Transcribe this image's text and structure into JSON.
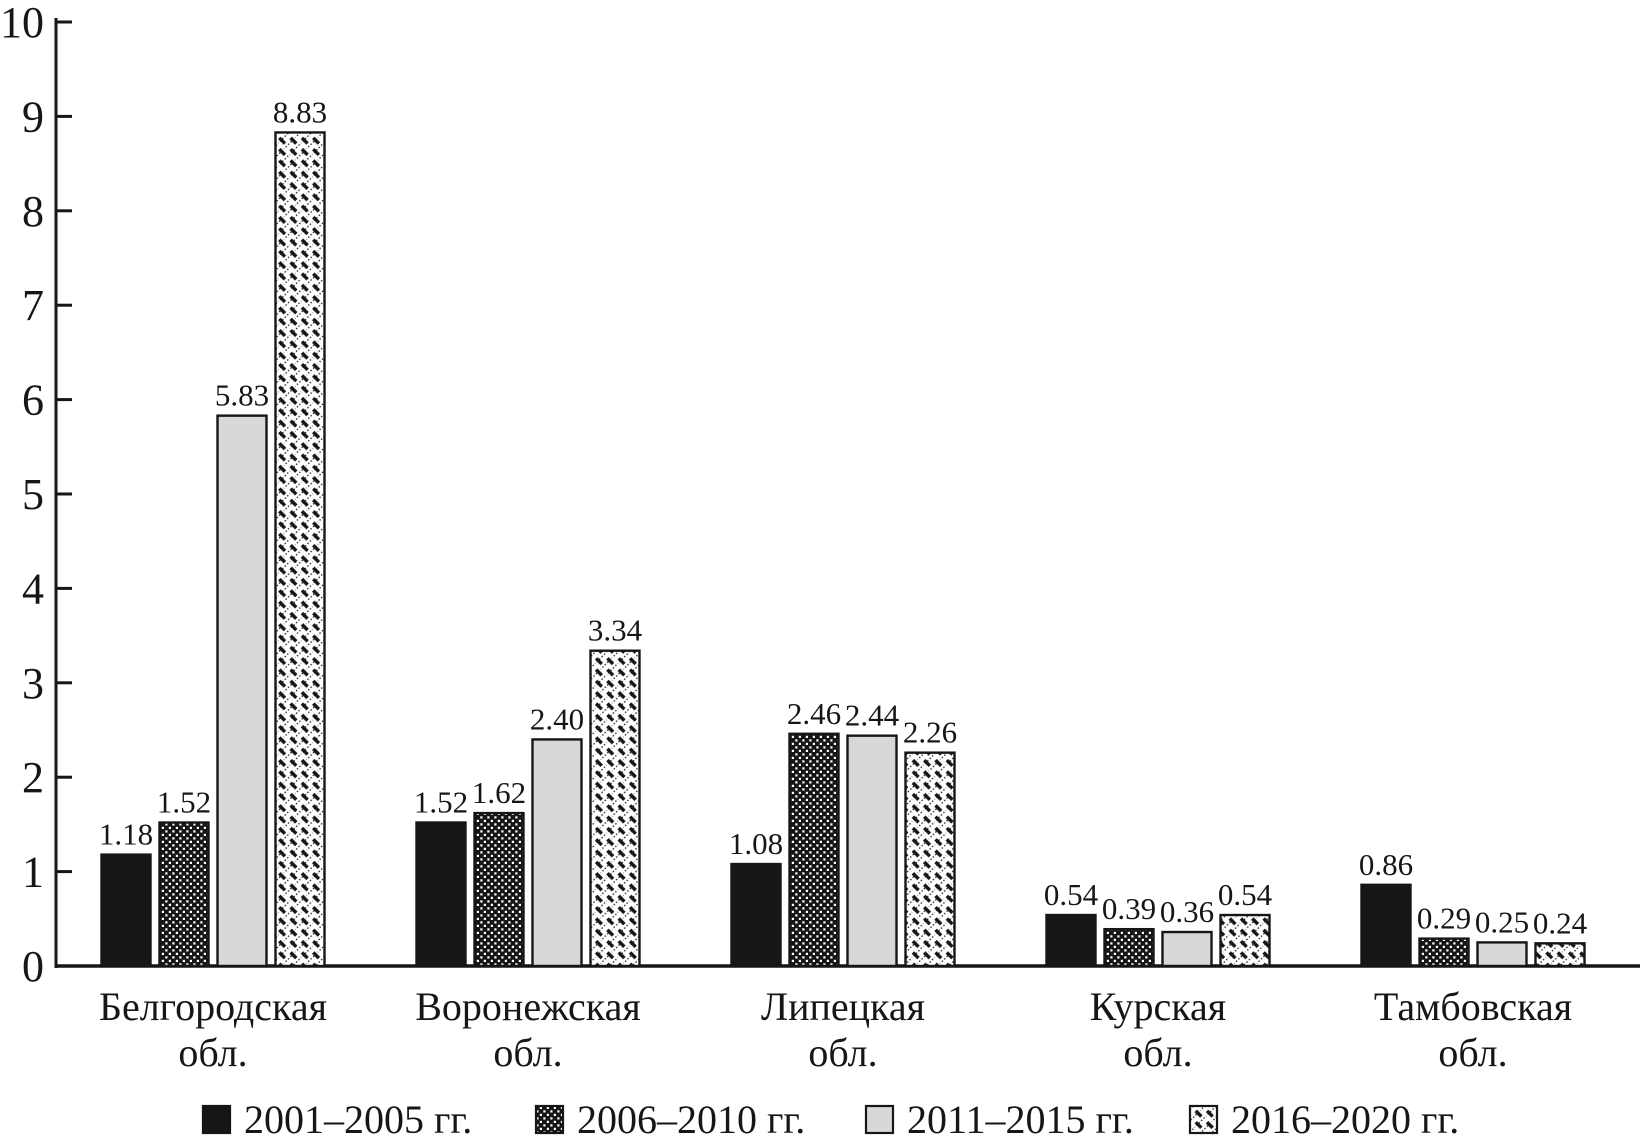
{
  "chart_data": {
    "type": "bar",
    "title": "",
    "xlabel": "",
    "ylabel": "",
    "ylim": [
      0,
      10
    ],
    "ytick_step": 1,
    "yticks": [
      0,
      1,
      2,
      3,
      4,
      5,
      6,
      7,
      8,
      9,
      10
    ],
    "grid": false,
    "legend_position": "bottom",
    "categories": [
      {
        "line1": "Белгородская",
        "line2": "обл."
      },
      {
        "line1": "Воронежская",
        "line2": "обл."
      },
      {
        "line1": "Липецкая",
        "line2": "обл."
      },
      {
        "line1": "Курская",
        "line2": "обл."
      },
      {
        "line1": "Тамбовская",
        "line2": "обл."
      }
    ],
    "series": [
      {
        "name": "2001–2005 гг.",
        "style": "solid-black",
        "values": [
          1.18,
          1.52,
          1.08,
          0.54,
          0.86
        ],
        "labels": [
          "1.18",
          "1.52",
          "1.08",
          "0.54",
          "0.86"
        ]
      },
      {
        "name": "2006–2010 гг.",
        "style": "white-dots-on-black",
        "values": [
          1.52,
          1.62,
          2.46,
          0.39,
          0.29
        ],
        "labels": [
          "1.52",
          "1.62",
          "2.46",
          "0.39",
          "0.29"
        ]
      },
      {
        "name": "2011–2015 гг.",
        "style": "light-gray-solid",
        "values": [
          5.83,
          2.4,
          2.44,
          0.36,
          0.25
        ],
        "labels": [
          "5.83",
          "2.40",
          "2.44",
          "0.36",
          "0.25"
        ]
      },
      {
        "name": "2016–2020 гг.",
        "style": "diagonal-hatch",
        "values": [
          8.83,
          3.34,
          2.26,
          0.54,
          0.24
        ],
        "labels": [
          "8.83",
          "3.34",
          "2.26",
          "0.54",
          "0.24"
        ]
      }
    ],
    "colors": {
      "ink": "#161616",
      "gray_fill": "#d8d8d8",
      "background": "#ffffff"
    }
  }
}
